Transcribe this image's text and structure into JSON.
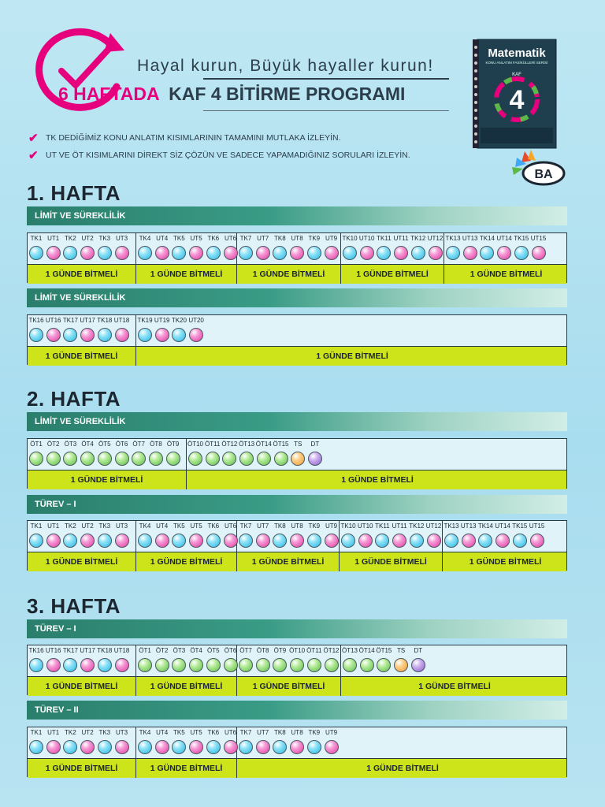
{
  "header": {
    "slogan": "Hayal kurun, Büyük hayaller kurun!",
    "title_accent": "6 HAFTADA",
    "title_main": "KAF 4 BİTİRME PROGRAMI",
    "notes": [
      "TK DEDİĞİMİZ KONU ANLATIM KISIMLARININ TAMAMINI MUTLAKA İZLEYİN.",
      "UT VE ÖT KISIMLARINI DİREKT SİZ ÇÖZÜN VE SADECE YAPAMADIĞINIZ SORULARI İZLEYİN."
    ],
    "book_title": "Matematik",
    "book_subtitle": "KONU ANLATIM FASİKÜLLERİ SERİSİ",
    "book_series": "KAF",
    "book_number": "4",
    "brand": "BA",
    "accent_color": "#e6007e"
  },
  "done_label": "1 GÜNDE BİTMELİ",
  "sections": [
    {
      "week": "1. HAFTA",
      "topic": "LİMİT VE SÜREKLİLİK",
      "groups": [
        {
          "items": [
            [
              "TK1",
              "c"
            ],
            [
              "UT1",
              "m"
            ],
            [
              "TK2",
              "c"
            ],
            [
              "UT2",
              "m"
            ],
            [
              "TK3",
              "c"
            ],
            [
              "UT3",
              "m"
            ]
          ]
        },
        {
          "items": [
            [
              "TK4",
              "c"
            ],
            [
              "UT4",
              "m"
            ],
            [
              "TK5",
              "c"
            ],
            [
              "UT5",
              "m"
            ],
            [
              "TK6",
              "c"
            ],
            [
              "UT6",
              "m"
            ]
          ]
        },
        {
          "items": [
            [
              "TK7",
              "c"
            ],
            [
              "UT7",
              "m"
            ],
            [
              "TK8",
              "c"
            ],
            [
              "UT8",
              "m"
            ],
            [
              "TK9",
              "c"
            ],
            [
              "UT9",
              "m"
            ]
          ]
        },
        {
          "items": [
            [
              "TK10",
              "c"
            ],
            [
              "UT10",
              "m"
            ],
            [
              "TK11",
              "c"
            ],
            [
              "UT11",
              "m"
            ],
            [
              "TK12",
              "c"
            ],
            [
              "UT12",
              "m"
            ]
          ]
        },
        {
          "items": [
            [
              "TK13",
              "c"
            ],
            [
              "UT13",
              "m"
            ],
            [
              "TK14",
              "c"
            ],
            [
              "UT14",
              "m"
            ],
            [
              "TK15",
              "c"
            ],
            [
              "UT15",
              "m"
            ]
          ]
        }
      ]
    },
    {
      "week": "",
      "topic": "LİMİT VE SÜREKLİLİK",
      "groups": [
        {
          "items": [
            [
              "TK16",
              "c"
            ],
            [
              "UT16",
              "m"
            ],
            [
              "TK17",
              "c"
            ],
            [
              "UT17",
              "m"
            ],
            [
              "TK18",
              "c"
            ],
            [
              "UT18",
              "m"
            ]
          ]
        },
        {
          "items": [
            [
              "TK19",
              "c"
            ],
            [
              "UT19",
              "m"
            ],
            [
              "TK20",
              "c"
            ],
            [
              "UT20",
              "m"
            ]
          ]
        }
      ]
    },
    {
      "week": "2. HAFTA",
      "topic": "LİMİT VE SÜREKLİLİK",
      "groups": [
        {
          "items": [
            [
              "ÖT1",
              "g"
            ],
            [
              "ÖT2",
              "g"
            ],
            [
              "ÖT3",
              "g"
            ],
            [
              "ÖT4",
              "g"
            ],
            [
              "ÖT5",
              "g"
            ],
            [
              "ÖT6",
              "g"
            ],
            [
              "ÖT7",
              "g"
            ],
            [
              "ÖT8",
              "g"
            ],
            [
              "ÖT9",
              "g"
            ]
          ]
        },
        {
          "items": [
            [
              "ÖT10",
              "g"
            ],
            [
              "ÖT11",
              "g"
            ],
            [
              "ÖT12",
              "g"
            ],
            [
              "ÖT13",
              "g"
            ],
            [
              "ÖT14",
              "g"
            ],
            [
              "ÖT15",
              "g"
            ],
            [
              "TS",
              "o"
            ],
            [
              "DT",
              "p"
            ]
          ]
        }
      ]
    },
    {
      "week": "",
      "topic": "TÜREV – I",
      "groups": [
        {
          "items": [
            [
              "TK1",
              "c"
            ],
            [
              "UT1",
              "m"
            ],
            [
              "TK2",
              "c"
            ],
            [
              "UT2",
              "m"
            ],
            [
              "TK3",
              "c"
            ],
            [
              "UT3",
              "m"
            ]
          ]
        },
        {
          "items": [
            [
              "TK4",
              "c"
            ],
            [
              "UT4",
              "m"
            ],
            [
              "TK5",
              "c"
            ],
            [
              "UT5",
              "m"
            ],
            [
              "TK6",
              "c"
            ],
            [
              "UT6",
              "m"
            ]
          ]
        },
        {
          "items": [
            [
              "TK7",
              "c"
            ],
            [
              "UT7",
              "m"
            ],
            [
              "TK8",
              "c"
            ],
            [
              "UT8",
              "m"
            ],
            [
              "TK9",
              "c"
            ],
            [
              "UT9",
              "m"
            ]
          ]
        },
        {
          "items": [
            [
              "TK10",
              "c"
            ],
            [
              "UT10",
              "m"
            ],
            [
              "TK11",
              "c"
            ],
            [
              "UT11",
              "m"
            ],
            [
              "TK12",
              "c"
            ],
            [
              "UT12",
              "m"
            ]
          ]
        },
        {
          "items": [
            [
              "TK13",
              "c"
            ],
            [
              "UT13",
              "m"
            ],
            [
              "TK14",
              "c"
            ],
            [
              "UT14",
              "m"
            ],
            [
              "TK15",
              "c"
            ],
            [
              "UT15",
              "m"
            ]
          ]
        }
      ]
    },
    {
      "week": "3. HAFTA",
      "topic": "TÜREV – I",
      "groups": [
        {
          "items": [
            [
              "TK16",
              "c"
            ],
            [
              "UT16",
              "m"
            ],
            [
              "TK17",
              "c"
            ],
            [
              "UT17",
              "m"
            ],
            [
              "TK18",
              "c"
            ],
            [
              "UT18",
              "m"
            ]
          ]
        },
        {
          "items": [
            [
              "ÖT1",
              "g"
            ],
            [
              "ÖT2",
              "g"
            ],
            [
              "ÖT3",
              "g"
            ],
            [
              "ÖT4",
              "g"
            ],
            [
              "ÖT5",
              "g"
            ],
            [
              "ÖT6",
              "g"
            ]
          ]
        },
        {
          "items": [
            [
              "ÖT7",
              "g"
            ],
            [
              "ÖT8",
              "g"
            ],
            [
              "ÖT9",
              "g"
            ],
            [
              "ÖT10",
              "g"
            ],
            [
              "ÖT11",
              "g"
            ],
            [
              "ÖT12",
              "g"
            ]
          ]
        },
        {
          "items": [
            [
              "ÖT13",
              "g"
            ],
            [
              "ÖT14",
              "g"
            ],
            [
              "ÖT15",
              "g"
            ],
            [
              "TS",
              "o"
            ],
            [
              "DT",
              "p"
            ]
          ]
        }
      ]
    },
    {
      "week": "",
      "topic": "TÜREV – II",
      "groups": [
        {
          "items": [
            [
              "TK1",
              "c"
            ],
            [
              "UT1",
              "m"
            ],
            [
              "TK2",
              "c"
            ],
            [
              "UT2",
              "m"
            ],
            [
              "TK3",
              "c"
            ],
            [
              "UT3",
              "m"
            ]
          ]
        },
        {
          "items": [
            [
              "TK4",
              "c"
            ],
            [
              "UT4",
              "m"
            ],
            [
              "TK5",
              "c"
            ],
            [
              "UT5",
              "m"
            ],
            [
              "TK6",
              "c"
            ],
            [
              "UT6",
              "m"
            ]
          ]
        },
        {
          "items": [
            [
              "TK7",
              "c"
            ],
            [
              "UT7",
              "m"
            ],
            [
              "TK8",
              "c"
            ],
            [
              "UT8",
              "m"
            ],
            [
              "TK9",
              "c"
            ],
            [
              "UT9",
              "m"
            ]
          ]
        }
      ]
    }
  ]
}
